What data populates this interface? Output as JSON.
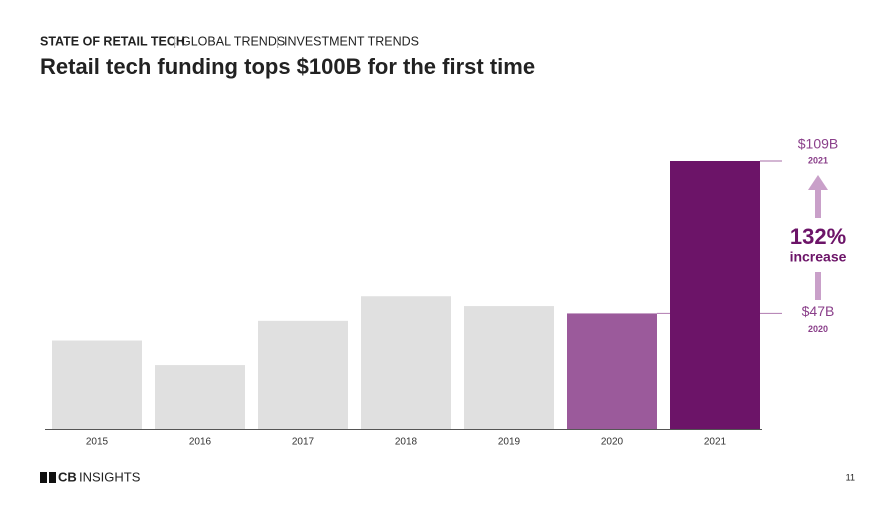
{
  "header": {
    "section": "STATE OF RETAIL TECH",
    "crumbs": [
      "GLOBAL TRENDS",
      "INVESTMENT TRENDS"
    ]
  },
  "chart_data": {
    "type": "bar",
    "title": "Retail tech funding tops $100B for the first time",
    "categories": [
      "2015",
      "2016",
      "2017",
      "2018",
      "2019",
      "2020",
      "2021"
    ],
    "values": [
      36,
      26,
      44,
      54,
      50,
      47,
      109
    ],
    "value_labels": [
      null,
      null,
      null,
      null,
      null,
      "$47B",
      "$109B"
    ],
    "colors": [
      "#e0e0e0",
      "#e0e0e0",
      "#e0e0e0",
      "#e0e0e0",
      "#e0e0e0",
      "#9b5a9b",
      "#6c1468"
    ],
    "annotation": {
      "value": "132%",
      "text": "increase"
    }
  },
  "footer": {
    "logo": [
      "CB",
      "INSIGHTS"
    ],
    "page": "11"
  }
}
